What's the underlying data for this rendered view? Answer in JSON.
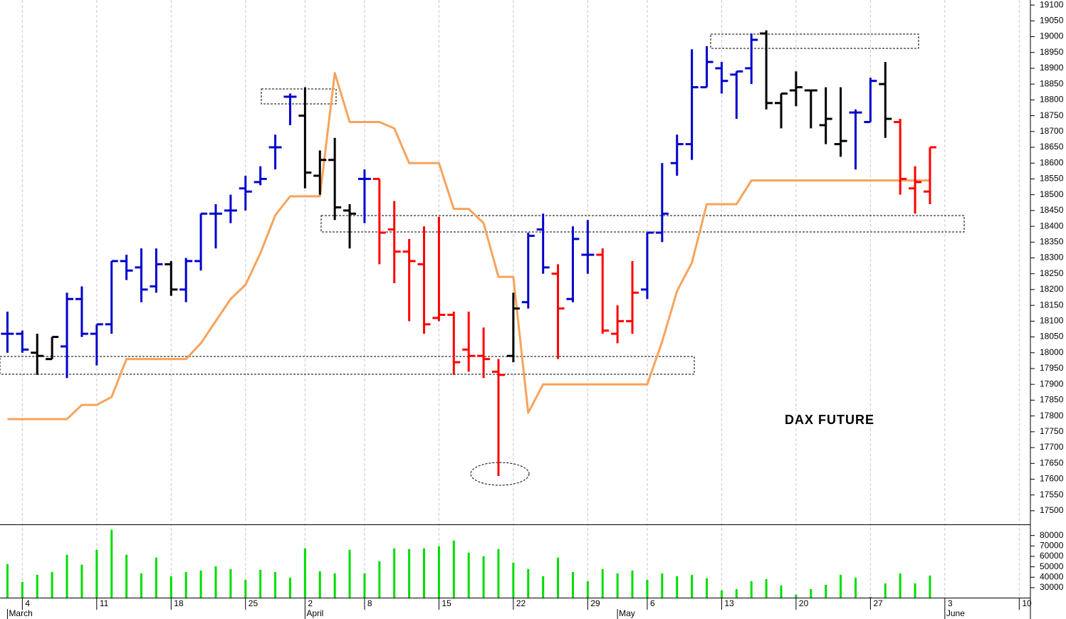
{
  "chart_data": [
    {
      "type": "ohlc",
      "title": "DAX FUTURE",
      "open": [
        18060,
        18060,
        18000,
        17980,
        18020,
        18170,
        18060,
        18090,
        18290,
        18270,
        18210,
        18280,
        18200,
        18290,
        18440,
        18450,
        18520,
        18540,
        18650,
        18810,
        18750,
        18560,
        18610,
        18450,
        18550,
        18550,
        18390,
        18320,
        18280,
        18110,
        18120,
        18010,
        17990,
        17940,
        17990,
        18160,
        18390,
        18250,
        18170,
        18310,
        18310,
        18060,
        18100,
        18200,
        18380,
        18600,
        18660,
        18840,
        18900,
        18880,
        18900,
        19010,
        18790,
        18830,
        18830,
        18720,
        18660,
        18760,
        18730,
        18850,
        18730,
        18520,
        18510
      ],
      "high": [
        18130,
        18070,
        18060,
        18050,
        18190,
        18210,
        18090,
        18290,
        18310,
        18330,
        18330,
        18290,
        18300,
        18440,
        18470,
        18500,
        18560,
        18590,
        18690,
        18820,
        18840,
        18640,
        18680,
        18470,
        18580,
        18550,
        18480,
        18360,
        18400,
        18430,
        18130,
        18130,
        18080,
        17980,
        18190,
        18380,
        18440,
        18280,
        18400,
        18420,
        18330,
        18150,
        18290,
        18380,
        18600,
        18690,
        18960,
        18970,
        18920,
        18890,
        19010,
        19020,
        18820,
        18890,
        18830,
        18840,
        18840,
        18770,
        18870,
        18920,
        18740,
        18590,
        18650
      ],
      "low": [
        18000,
        18000,
        17930,
        17980,
        17920,
        18050,
        17960,
        18060,
        18230,
        18160,
        18190,
        18180,
        18160,
        18260,
        18330,
        18410,
        18450,
        18530,
        18580,
        18720,
        18520,
        18500,
        18420,
        18330,
        18410,
        18280,
        18220,
        18100,
        18060,
        18100,
        17930,
        17940,
        17920,
        17610,
        17970,
        18140,
        18250,
        17980,
        18160,
        18250,
        18060,
        18030,
        18060,
        18170,
        18350,
        18560,
        18610,
        18840,
        18820,
        18740,
        18850,
        18770,
        18710,
        18780,
        18710,
        18660,
        18620,
        18580,
        18730,
        18680,
        18500,
        18440,
        18470
      ],
      "close": [
        18060,
        18010,
        17990,
        18050,
        18170,
        18060,
        18090,
        18290,
        18260,
        18200,
        18280,
        18200,
        18290,
        18440,
        18440,
        18450,
        18510,
        18550,
        18650,
        18810,
        18570,
        18610,
        18460,
        18440,
        18550,
        18380,
        18320,
        18290,
        18090,
        18120,
        17970,
        17990,
        17980,
        17930,
        18140,
        18370,
        18270,
        18140,
        18360,
        18310,
        18070,
        18100,
        18190,
        18380,
        18440,
        18660,
        18840,
        18920,
        18860,
        18890,
        18990,
        18790,
        18820,
        18840,
        18830,
        18740,
        18670,
        18760,
        18860,
        18740,
        18550,
        18540,
        18650
      ],
      "colors": [
        "#0000cc",
        "#0000cc",
        "#000000",
        "#000000",
        "#0000cc",
        "#0000cc",
        "#0000cc",
        "#0000cc",
        "#0000cc",
        "#0000cc",
        "#0000cc",
        "#000000",
        "#0000cc",
        "#0000cc",
        "#0000cc",
        "#0000cc",
        "#0000cc",
        "#0000cc",
        "#0000cc",
        "#0000cc",
        "#000000",
        "#000000",
        "#000000",
        "#000000",
        "#0000cc",
        "#ff0000",
        "#ff0000",
        "#ff0000",
        "#ff0000",
        "#ff0000",
        "#ff0000",
        "#ff0000",
        "#ff0000",
        "#ff0000",
        "#000000",
        "#0000cc",
        "#0000cc",
        "#ff0000",
        "#0000cc",
        "#0000cc",
        "#ff0000",
        "#ff0000",
        "#ff0000",
        "#0000cc",
        "#0000cc",
        "#0000cc",
        "#0000cc",
        "#0000cc",
        "#0000cc",
        "#0000cc",
        "#0000cc",
        "#000000",
        "#000000",
        "#000000",
        "#000000",
        "#000000",
        "#000000",
        "#0000cc",
        "#0000cc",
        "#000000",
        "#ff0000",
        "#ff0000",
        "#ff0000"
      ],
      "line": {
        "color": "#f7a35c",
        "values": [
          17790,
          17790,
          17790,
          17790,
          17790,
          17835,
          17835,
          17860,
          17980,
          17980,
          17980,
          17980,
          17980,
          18030,
          18100,
          18170,
          18215,
          18315,
          18435,
          18495,
          18495,
          18495,
          18885,
          18730,
          18730,
          18730,
          18710,
          18600,
          18600,
          18600,
          18455,
          18455,
          18410,
          18240,
          18240,
          17810,
          17900,
          17900,
          17900,
          17900,
          17900,
          17900,
          17900,
          17900,
          18035,
          18195,
          18285,
          18470,
          18470,
          18470,
          18545,
          18545,
          18545,
          18545,
          18545,
          18545,
          18545,
          18545,
          18545,
          18545,
          18545,
          18545,
          18545
        ]
      },
      "xlim": [
        -0.5,
        68.75
      ],
      "ylim": [
        17457,
        19116
      ],
      "yticks": [
        17500,
        17550,
        17600,
        17650,
        17700,
        17750,
        17800,
        17850,
        17900,
        17950,
        18000,
        18050,
        18100,
        18150,
        18200,
        18250,
        18300,
        18350,
        18400,
        18450,
        18500,
        18550,
        18600,
        18650,
        18700,
        18750,
        18800,
        18850,
        18900,
        18950,
        19000,
        19050,
        19100
      ]
    },
    {
      "type": "bar",
      "color": "#00dd00",
      "values": [
        52600,
        35500,
        42300,
        45000,
        61500,
        52000,
        66300,
        85500,
        61500,
        43700,
        58800,
        41000,
        45000,
        46400,
        50500,
        47800,
        37500,
        47100,
        45000,
        39600,
        67700,
        45700,
        43700,
        66300,
        43700,
        55300,
        67700,
        67000,
        67700,
        69700,
        75200,
        63600,
        60100,
        67000,
        54000,
        47800,
        41000,
        58800,
        45000,
        36200,
        47800,
        43700,
        46400,
        37500,
        43700,
        41000,
        42300,
        38900,
        27300,
        28600,
        36200,
        38200,
        32100,
        23200,
        28600,
        32700,
        42300,
        39600,
        21100,
        34100,
        43700,
        34100,
        41600
      ],
      "xlim": [
        -0.5,
        68.75
      ],
      "ylim": [
        20400,
        90000
      ],
      "yticks": [
        30000,
        40000,
        50000,
        60000,
        70000,
        80000
      ],
      "xticks": [
        {
          "value": 1,
          "label": "4"
        },
        {
          "value": 6,
          "label": "11"
        },
        {
          "value": 11,
          "label": "18"
        },
        {
          "value": 16,
          "label": "25"
        },
        {
          "value": 20,
          "label": "2"
        },
        {
          "value": 24,
          "label": "8"
        },
        {
          "value": 29,
          "label": "15"
        },
        {
          "value": 34,
          "label": "22"
        },
        {
          "value": 39,
          "label": "29"
        },
        {
          "value": 43,
          "label": "6"
        },
        {
          "value": 48,
          "label": "13"
        },
        {
          "value": 53,
          "label": "20"
        },
        {
          "value": 58,
          "label": "27"
        },
        {
          "value": 63,
          "label": "3"
        },
        {
          "value": 68,
          "label": "10"
        }
      ],
      "month_ticks": [
        {
          "value": 0,
          "label": "March"
        },
        {
          "value": 20,
          "label": "April"
        },
        {
          "value": 41,
          "label": "May"
        },
        {
          "value": 63,
          "label": "June"
        }
      ]
    }
  ]
}
